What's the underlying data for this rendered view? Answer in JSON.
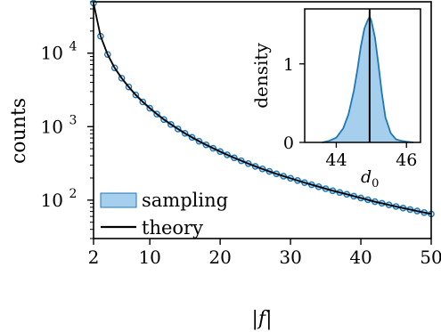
{
  "chart_data": [
    {
      "type": "line",
      "xlabel": "|f|",
      "ylabel": "counts",
      "xlim": [
        2,
        50
      ],
      "ylim": [
        30,
        50000
      ],
      "yscale": "log",
      "x_ticks": [
        "2",
        "10",
        "20",
        "30",
        "40",
        "50"
      ],
      "y_ticks": [
        {
          "base": "10",
          "exp": "2"
        },
        {
          "base": "10",
          "exp": "3"
        },
        {
          "base": "10",
          "exp": "4"
        }
      ],
      "grid": false,
      "legend_position": "bottom-left",
      "series": [
        {
          "name": "sampling",
          "kind": "band-with-markers",
          "color": "#1f77b4",
          "fill": "#a6cfee",
          "x": [
            2,
            3,
            4,
            5,
            6,
            7,
            8,
            9,
            10,
            11,
            12,
            13,
            14,
            15,
            16,
            17,
            18,
            19,
            20,
            21,
            22,
            23,
            24,
            25,
            26,
            27,
            28,
            29,
            30,
            31,
            32,
            33,
            34,
            35,
            36,
            37,
            38,
            39,
            40,
            41,
            42,
            43,
            44,
            45,
            46,
            47,
            48,
            49,
            50
          ],
          "values": [
            48000,
            17000,
            9600,
            6300,
            4560,
            3470,
            2700,
            2170,
            1780,
            1480,
            1250,
            1070,
            928,
            811,
            714,
            633,
            565,
            507,
            457,
            414,
            376,
            343,
            314,
            288,
            266,
            246,
            228,
            212,
            198,
            185,
            173,
            162,
            152,
            143,
            134,
            127,
            120,
            113,
            107,
            101,
            95.3,
            90.6,
            86.1,
            81.9,
            78.0,
            74.4,
            71.0,
            67.8,
            64.8
          ]
        },
        {
          "name": "theory",
          "kind": "line",
          "color": "#000000",
          "x": [
            2,
            3,
            4,
            5,
            6,
            7,
            8,
            9,
            10,
            11,
            12,
            13,
            14,
            15,
            16,
            17,
            18,
            19,
            20,
            21,
            22,
            23,
            24,
            25,
            26,
            27,
            28,
            29,
            30,
            31,
            32,
            33,
            34,
            35,
            36,
            37,
            38,
            39,
            40,
            41,
            42,
            43,
            44,
            45,
            46,
            47,
            48,
            49,
            50
          ],
          "values": [
            48000,
            17000,
            9600,
            6300,
            4560,
            3470,
            2700,
            2170,
            1780,
            1480,
            1250,
            1070,
            928,
            811,
            714,
            633,
            565,
            507,
            457,
            414,
            376,
            343,
            314,
            288,
            266,
            246,
            228,
            212,
            198,
            185,
            173,
            162,
            152,
            143,
            134,
            127,
            120,
            113,
            107,
            101,
            95.3,
            90.6,
            86.1,
            81.9,
            78.0,
            74.4,
            71.0,
            67.8,
            64.8
          ]
        }
      ]
    },
    {
      "type": "area",
      "inset": true,
      "ylabel": "density",
      "xlim": [
        43.1,
        46.4
      ],
      "ylim": [
        0,
        1.7
      ],
      "x_ticks": [
        "44",
        "46"
      ],
      "y_ticks": [
        "0",
        "1"
      ],
      "vline": {
        "x": 44.95,
        "label": "d",
        "label_sub": "0"
      },
      "series": [
        {
          "name": "",
          "color": "#1f77b4",
          "fill": "#a6cfee",
          "x": [
            43.6,
            43.8,
            44.0,
            44.2,
            44.35,
            44.5,
            44.6,
            44.7,
            44.8,
            44.9,
            44.95,
            45.0,
            45.1,
            45.2,
            45.3,
            45.4,
            45.55,
            45.7,
            45.85,
            46.0,
            46.2
          ],
          "values": [
            0,
            0.02,
            0.06,
            0.18,
            0.36,
            0.66,
            0.92,
            1.22,
            1.45,
            1.56,
            1.6,
            1.55,
            1.34,
            1.0,
            0.62,
            0.32,
            0.12,
            0.04,
            0.02,
            0.01,
            0
          ]
        }
      ]
    }
  ]
}
